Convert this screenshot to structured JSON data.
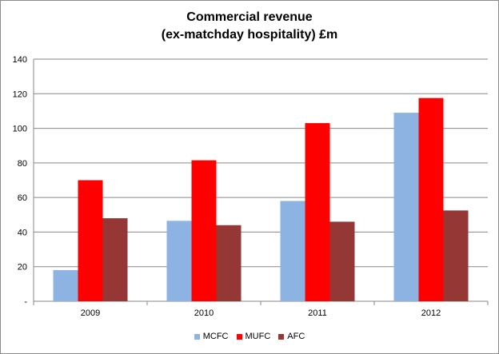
{
  "chart_data": {
    "type": "bar",
    "title": "Commercial revenue",
    "subtitle": "(ex-matchday hospitality) £m",
    "categories": [
      "2009",
      "2010",
      "2011",
      "2012"
    ],
    "series": [
      {
        "name": "MCFC",
        "color": "#8db3e2",
        "values": [
          18,
          46.5,
          58,
          109
        ]
      },
      {
        "name": "MUFC",
        "color": "#ff0000",
        "values": [
          70,
          81.5,
          103,
          117.5
        ]
      },
      {
        "name": "AFC",
        "color": "#953735",
        "values": [
          48,
          44,
          46,
          52.5
        ]
      }
    ],
    "ylim": [
      0,
      140
    ],
    "yticks": [
      "-",
      "20",
      "40",
      "60",
      "80",
      "100",
      "120",
      "140"
    ],
    "xlabel": "",
    "ylabel": "",
    "grid": true,
    "legend": "bottom"
  }
}
